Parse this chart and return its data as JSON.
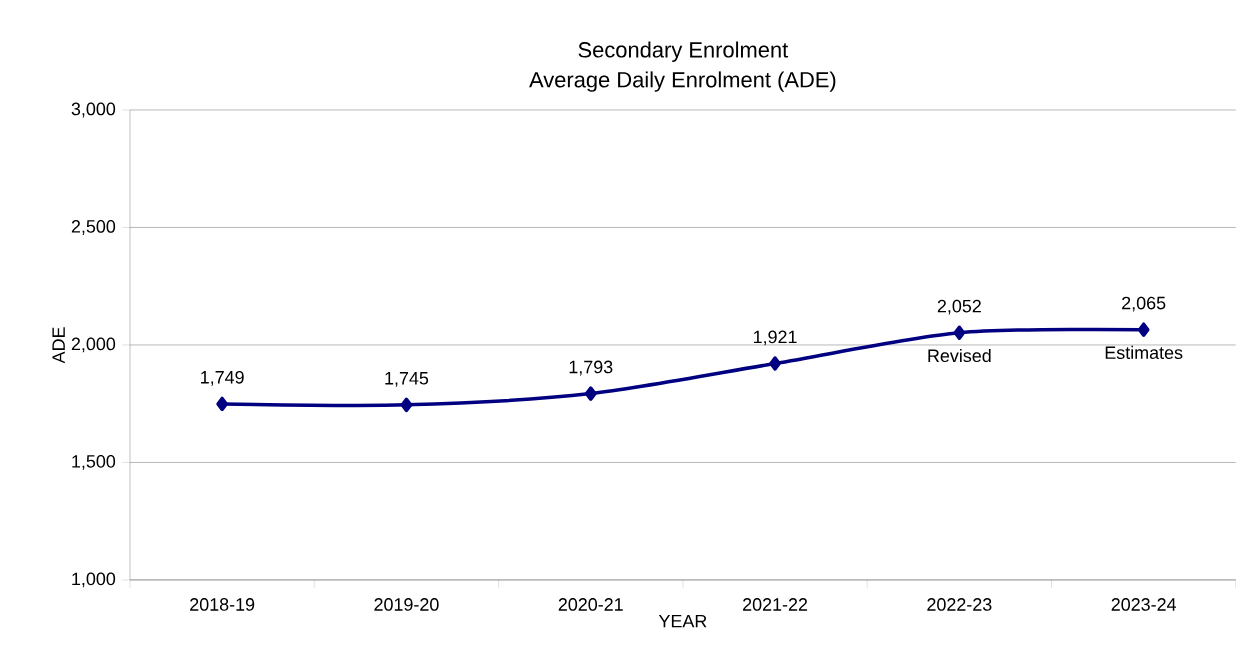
{
  "chart_data": {
    "type": "line",
    "title": "Secondary Enrolment",
    "subtitle": "Average Daily Enrolment (ADE)",
    "xlabel": "YEAR",
    "ylabel": "ADE",
    "categories": [
      "2018-19",
      "2019-20",
      "2020-21",
      "2021-22",
      "2022-23",
      "2023-24"
    ],
    "series": [
      {
        "color": "#000080",
        "values": [
          1749,
          1745,
          1793,
          1921,
          2052,
          2065
        ],
        "value_labels": [
          "1,749",
          "1,745",
          "1,793",
          "1,921",
          "2,052",
          "2,065"
        ]
      }
    ],
    "ylim": [
      1000,
      3000
    ],
    "yticks": [
      {
        "value": 1000,
        "label": "1,000"
      },
      {
        "value": 1500,
        "label": "1,500"
      },
      {
        "value": 2000,
        "label": "2,000"
      },
      {
        "value": 2500,
        "label": "2,500"
      },
      {
        "value": 3000,
        "label": "3,000"
      }
    ],
    "annotations": [
      {
        "text": "Revised",
        "x": "2022-23",
        "y": 2052
      },
      {
        "text": "Estimates",
        "x": "2023-24",
        "y": 2065
      }
    ],
    "grid": "y",
    "marker": "diamond",
    "line_style": "solid"
  }
}
